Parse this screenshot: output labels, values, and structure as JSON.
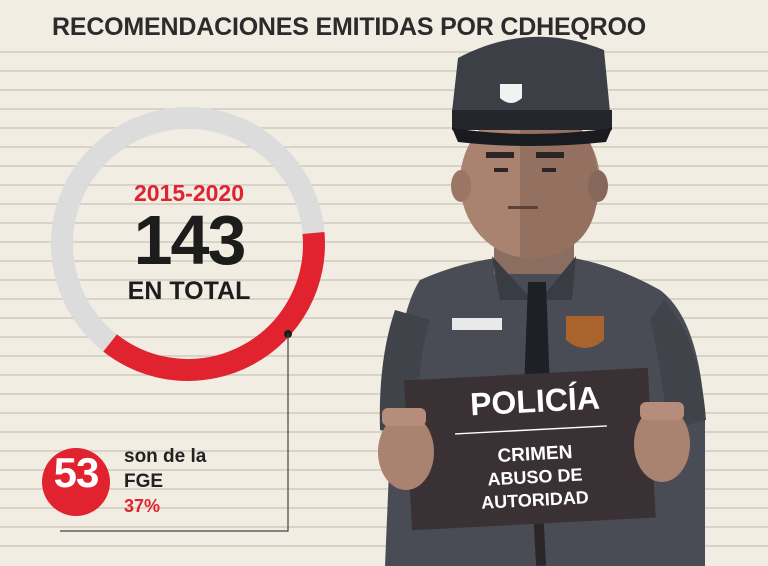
{
  "title": "RECOMENDACIONES EMITIDAS POR CDHEQROO",
  "stat": {
    "years": "2015-2020",
    "total": "143",
    "total_label": "EN TOTAL",
    "fraction": 0.37
  },
  "substat": {
    "count": "53",
    "label_line1": "son de la",
    "label_line2": "FGE",
    "percent": "37%"
  },
  "sign": {
    "title": "POLICÍA",
    "line1": "CRIMEN",
    "line2": "ABUSO DE",
    "line3": "AUTORIDAD"
  },
  "colors": {
    "accent": "#e0232e",
    "background": "#f1ede3",
    "ring_track": "#dcdcdc",
    "uniform": "#4a4c55",
    "sign": "#3a3135"
  }
}
